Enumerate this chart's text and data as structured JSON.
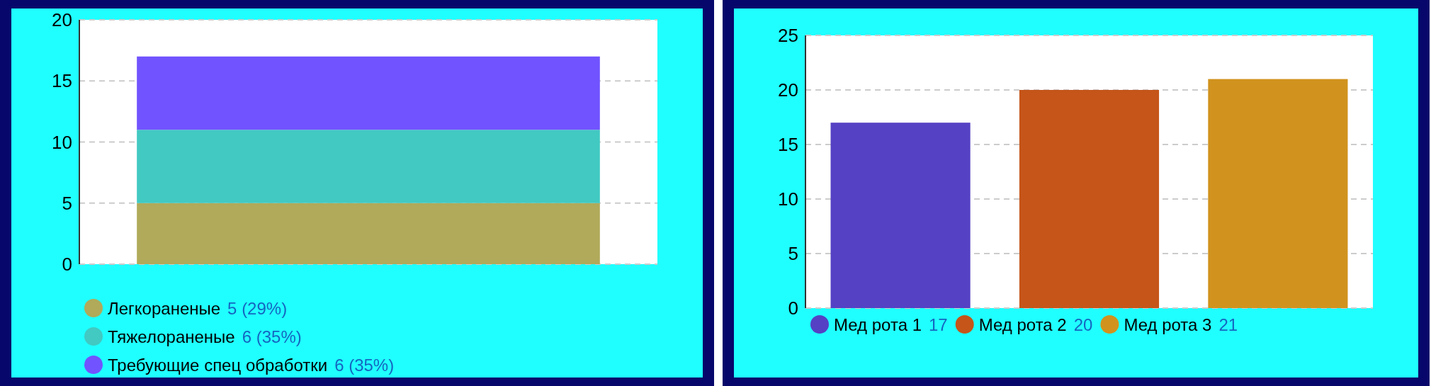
{
  "chart_data": [
    {
      "type": "bar",
      "stacked": true,
      "categories": [
        null
      ],
      "ylim": [
        0,
        20
      ],
      "yticks": [
        0,
        5,
        10,
        15,
        20
      ],
      "grid": "y",
      "legend": "bottom",
      "annotations": [
        "5 (29%)",
        "6 (35%)",
        "6 (35%)"
      ],
      "series": [
        {
          "name": "Легкораненые",
          "color": "#b0aa5a",
          "values": [
            5
          ]
        },
        {
          "name": "Тяжелораненые",
          "color": "#41c9c2",
          "values": [
            6
          ]
        },
        {
          "name": "Требующие спец обработки",
          "color": "#7153ff",
          "values": [
            6
          ]
        }
      ]
    },
    {
      "type": "bar",
      "categories": [
        null,
        null,
        null
      ],
      "ylim": [
        0,
        25
      ],
      "yticks": [
        0,
        5,
        10,
        15,
        20,
        25
      ],
      "grid": "y",
      "legend": "bottom",
      "series": [
        {
          "name": "Мед рота 1",
          "color": "#5541c4",
          "values": [
            17,
            null,
            null
          ],
          "value_labels": [
            "17",
            null,
            null
          ]
        },
        {
          "name": "Мед рота 2",
          "color": "#c55519",
          "values": [
            null,
            20,
            null
          ],
          "value_labels": [
            null,
            "20",
            null
          ]
        },
        {
          "name": "Мед рота 3",
          "color": "#d1931e",
          "values": [
            null,
            null,
            21
          ],
          "value_labels": [
            null,
            null,
            "21"
          ]
        }
      ]
    }
  ]
}
